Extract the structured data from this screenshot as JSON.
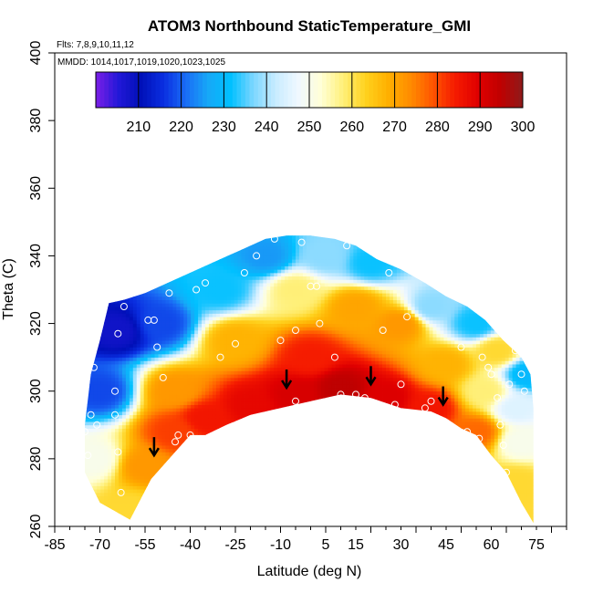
{
  "chart_data": {
    "type": "heatmap",
    "title": "ATOM3 Northbound StaticTemperature_GMI",
    "flights_note": "Flts: 7,8,9,10,11,12",
    "dates_note": "MMDD: 1014,1017,1019,1020,1023,1025",
    "xlabel": "Latitude (deg N)",
    "ylabel": "Theta (C)",
    "xlim": [
      -85,
      85
    ],
    "ylim": [
      260,
      400
    ],
    "x_ticks": [
      -85,
      -70,
      -55,
      -40,
      -25,
      -10,
      5,
      15,
      30,
      45,
      60,
      75
    ],
    "x_tick_labels": [
      "-85",
      "-70",
      "-55",
      "-40",
      "-25",
      "-10",
      "5",
      "15",
      "30",
      "45",
      "60",
      "75"
    ],
    "y_ticks": [
      260,
      280,
      300,
      320,
      340,
      360,
      380,
      400
    ],
    "y_tick_labels": [
      "260",
      "280",
      "300",
      "320",
      "340",
      "360",
      "380",
      "400"
    ],
    "colorbar": {
      "range": [
        200,
        300
      ],
      "ticks": [
        210,
        220,
        230,
        240,
        250,
        260,
        270,
        280,
        290,
        300
      ],
      "tick_labels": [
        "210",
        "220",
        "230",
        "240",
        "250",
        "260",
        "270",
        "280",
        "290",
        "300"
      ],
      "colors": [
        "#7B1FE8",
        "#2218D8",
        "#0010B8",
        "#0A2EE0",
        "#1A6CF5",
        "#17A8F7",
        "#00C0FF",
        "#7BD6FF",
        "#C8ECFF",
        "#F0F8FF",
        "#FFFFD8",
        "#FFF07A",
        "#FFD21E",
        "#FFB000",
        "#FF8C00",
        "#FF5500",
        "#F51A00",
        "#E00000",
        "#C00000",
        "#8E1A1A"
      ]
    },
    "boundary_top": [
      [
        -75,
        290
      ],
      [
        -73,
        305
      ],
      [
        -70,
        315
      ],
      [
        -67,
        326
      ],
      [
        -62,
        327
      ],
      [
        -55,
        329
      ],
      [
        -45,
        333
      ],
      [
        -35,
        337
      ],
      [
        -25,
        341
      ],
      [
        -15,
        345
      ],
      [
        -8,
        346
      ],
      [
        0,
        346
      ],
      [
        8,
        345
      ],
      [
        15,
        343
      ],
      [
        22,
        339
      ],
      [
        30,
        336
      ],
      [
        38,
        332
      ],
      [
        45,
        328
      ],
      [
        52,
        325
      ],
      [
        58,
        321
      ],
      [
        64,
        315
      ],
      [
        70,
        310
      ],
      [
        73,
        305
      ],
      [
        74,
        295
      ]
    ],
    "boundary_bottom": [
      [
        -75,
        276
      ],
      [
        -70,
        267
      ],
      [
        -60,
        262
      ],
      [
        -53,
        274
      ],
      [
        -45,
        282
      ],
      [
        -40,
        287
      ],
      [
        -35,
        287
      ],
      [
        -28,
        290
      ],
      [
        -20,
        293
      ],
      [
        -10,
        295
      ],
      [
        0,
        297
      ],
      [
        10,
        299
      ],
      [
        20,
        298
      ],
      [
        30,
        295
      ],
      [
        40,
        294
      ],
      [
        45,
        292
      ],
      [
        50,
        289
      ],
      [
        55,
        287
      ],
      [
        60,
        281
      ],
      [
        65,
        276
      ],
      [
        70,
        267
      ],
      [
        74,
        261
      ]
    ],
    "temperature_samples": [
      {
        "lat": -60,
        "theta": 265,
        "t": 262
      },
      {
        "lat": -55,
        "theta": 278,
        "t": 272
      },
      {
        "lat": -45,
        "theta": 288,
        "t": 281
      },
      {
        "lat": -35,
        "theta": 292,
        "t": 285
      },
      {
        "lat": -20,
        "theta": 296,
        "t": 288
      },
      {
        "lat": -5,
        "theta": 299,
        "t": 291
      },
      {
        "lat": 10,
        "theta": 301,
        "t": 295
      },
      {
        "lat": 25,
        "theta": 298,
        "t": 290
      },
      {
        "lat": 40,
        "theta": 295,
        "t": 285
      },
      {
        "lat": 55,
        "theta": 288,
        "t": 277
      },
      {
        "lat": 68,
        "theta": 273,
        "t": 262
      },
      {
        "lat": -72,
        "theta": 280,
        "t": 250
      },
      {
        "lat": -70,
        "theta": 300,
        "t": 218
      },
      {
        "lat": -64,
        "theta": 318,
        "t": 208
      },
      {
        "lat": -50,
        "theta": 320,
        "t": 218
      },
      {
        "lat": -45,
        "theta": 300,
        "t": 272
      },
      {
        "lat": -30,
        "theta": 330,
        "t": 232
      },
      {
        "lat": -25,
        "theta": 315,
        "t": 268
      },
      {
        "lat": -15,
        "theta": 340,
        "t": 225
      },
      {
        "lat": -5,
        "theta": 330,
        "t": 258
      },
      {
        "lat": 0,
        "theta": 310,
        "t": 284
      },
      {
        "lat": 5,
        "theta": 340,
        "t": 238
      },
      {
        "lat": 15,
        "theta": 325,
        "t": 270
      },
      {
        "lat": 20,
        "theta": 338,
        "t": 232
      },
      {
        "lat": 30,
        "theta": 320,
        "t": 272
      },
      {
        "lat": 40,
        "theta": 325,
        "t": 238
      },
      {
        "lat": 45,
        "theta": 308,
        "t": 268
      },
      {
        "lat": 55,
        "theta": 320,
        "t": 232
      },
      {
        "lat": 58,
        "theta": 300,
        "t": 258
      },
      {
        "lat": 62,
        "theta": 312,
        "t": 262
      },
      {
        "lat": 68,
        "theta": 295,
        "t": 245
      },
      {
        "lat": 72,
        "theta": 305,
        "t": 230
      },
      {
        "lat": 70,
        "theta": 285,
        "t": 250
      }
    ],
    "observations": [
      [
        -75,
        288
      ],
      [
        -73,
        293
      ],
      [
        -74,
        281
      ],
      [
        -71,
        290
      ],
      [
        -72,
        307
      ],
      [
        -65,
        300
      ],
      [
        -65,
        293
      ],
      [
        -64,
        282
      ],
      [
        -63,
        270
      ],
      [
        -64,
        317
      ],
      [
        -62,
        325
      ],
      [
        -54,
        321
      ],
      [
        -52,
        321
      ],
      [
        -51,
        313
      ],
      [
        -49,
        304
      ],
      [
        -47,
        329
      ],
      [
        -45,
        285
      ],
      [
        -44,
        287
      ],
      [
        -40,
        287
      ],
      [
        -38,
        330
      ],
      [
        -35,
        332
      ],
      [
        -30,
        310
      ],
      [
        -25,
        314
      ],
      [
        -22,
        335
      ],
      [
        -18,
        340
      ],
      [
        -12,
        345
      ],
      [
        -10,
        315
      ],
      [
        -5,
        318
      ],
      [
        -5,
        297
      ],
      [
        -3,
        344
      ],
      [
        0,
        331
      ],
      [
        2,
        331
      ],
      [
        3,
        320
      ],
      [
        8,
        310
      ],
      [
        10,
        299
      ],
      [
        12,
        343
      ],
      [
        15,
        299
      ],
      [
        18,
        298
      ],
      [
        20,
        342
      ],
      [
        24,
        318
      ],
      [
        26,
        335
      ],
      [
        28,
        296
      ],
      [
        30,
        302
      ],
      [
        32,
        322
      ],
      [
        36,
        292
      ],
      [
        38,
        295
      ],
      [
        40,
        297
      ],
      [
        42,
        292
      ],
      [
        46,
        290
      ],
      [
        48,
        287
      ],
      [
        50,
        313
      ],
      [
        52,
        288
      ],
      [
        56,
        286
      ],
      [
        57,
        310
      ],
      [
        59,
        307
      ],
      [
        60,
        305
      ],
      [
        62,
        298
      ],
      [
        63,
        290
      ],
      [
        64,
        284
      ],
      [
        65,
        276
      ],
      [
        66,
        302
      ],
      [
        68,
        312
      ],
      [
        70,
        305
      ],
      [
        71,
        300
      ]
    ],
    "arrows": [
      {
        "lat": -52,
        "theta": 281
      },
      {
        "lat": -8,
        "theta": 301
      },
      {
        "lat": 20,
        "theta": 302
      },
      {
        "lat": 44,
        "theta": 296
      }
    ]
  }
}
